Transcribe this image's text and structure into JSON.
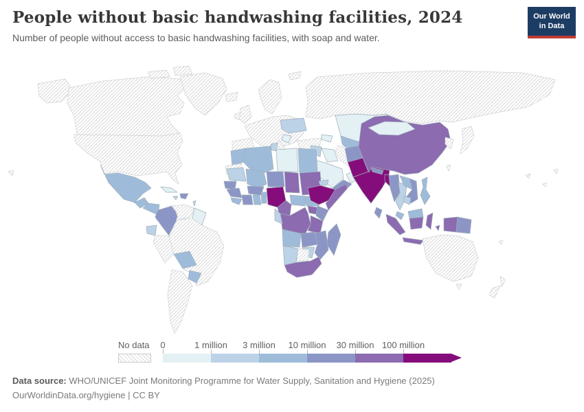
{
  "header": {
    "title": "People without basic handwashing facilities, 2024",
    "subtitle": "Number of people without access to basic handwashing facilities, with soap and water."
  },
  "logo": {
    "line1": "Our World",
    "line2": "in Data",
    "bg_color": "#1d3c63",
    "accent_color": "#c33c33"
  },
  "legend": {
    "no_data": {
      "label": "No data",
      "pattern": "diagonal-hatch"
    },
    "bins": [
      {
        "label": "0",
        "color": "#e4f1f4"
      },
      {
        "label": "1 million",
        "color": "#bcd2e6"
      },
      {
        "label": "3 million",
        "color": "#9ebcda"
      },
      {
        "label": "10 million",
        "color": "#8c96c6"
      },
      {
        "label": "30 million",
        "color": "#8c6bb1"
      },
      {
        "label": "100 million",
        "color": "#850d7b"
      }
    ]
  },
  "footer": {
    "source_label": "Data source:",
    "source_text": " WHO/UNICEF Joint Monitoring Programme for Water Supply, Sanitation and Hygiene (2025)",
    "link": "OurWorldinData.org/hygiene",
    "license": " | CC BY"
  },
  "chart_data": {
    "type": "choropleth_map",
    "title": "People without basic handwashing facilities, 2024",
    "unit": "people without access to basic handwashing facilities",
    "year": 2024,
    "bin_labels": [
      "0",
      "1 million",
      "3 million",
      "10 million",
      "30 million",
      "100 million"
    ],
    "no_data_label": "No data",
    "regions": {
      "alaska": "no-data",
      "canada": "no-data",
      "arctic-islands-1": "no-data",
      "arctic-islands-2": "no-data",
      "greenland": "no-data",
      "usa": "no-data",
      "mexico": 2,
      "guatemala": 2,
      "honduras-nicaragua": 2,
      "costa-rica-panama": 1,
      "cuba": 0,
      "jamaica": 1,
      "hispaniola": 3,
      "lesser-antilles": 1,
      "colombia": 3,
      "venezuela": "no-data",
      "guyanas": 0,
      "ecuador": 1,
      "peru": "no-data",
      "brazil": "no-data",
      "bolivia": 2,
      "paraguay": 2,
      "argentina-chile": "no-data",
      "iceland": "no-data",
      "uk": "no-data",
      "ireland": "no-data",
      "scandinavia": "no-data",
      "europe-mainland": "no-data",
      "spain": "no-data",
      "italy": "no-data",
      "ukraine": 1,
      "balkans": 0,
      "turkey": "no-data",
      "russia": "no-data",
      "svalbard": "no-data",
      "kazakhstan": 0,
      "uzbekistan-turkmenistan": 2,
      "caucasus": 0,
      "syria-levant": 1,
      "iraq": 0,
      "iran": "no-data",
      "saudi-arabia": 0,
      "yemen": 3,
      "oman": 0,
      "morocco": 2,
      "western-sahara": "no-data",
      "algeria": 2,
      "tunisia": 1,
      "libya": 0,
      "egypt": 2,
      "mauritania": 1,
      "mali": 2,
      "niger": 3,
      "chad": 4,
      "sudan": 4,
      "eritrea": 1,
      "senegal": 3,
      "guinea": 3,
      "sierra-leone-liberia": 2,
      "ivory-coast": 3,
      "ghana": 2,
      "burkina-faso": 3,
      "benin-togo": 2,
      "nigeria": 5,
      "cameroon": 4,
      "central-african-republic": 2,
      "south-sudan": 2,
      "ethiopia": 5,
      "somalia": 4,
      "uganda": 4,
      "kenya": 3,
      "drc": 4,
      "congo-gabon": 1,
      "tanzania": 4,
      "angola": 2,
      "zambia": 3,
      "malawi-mozambique": 3,
      "zimbabwe": 1,
      "namibia": 1,
      "botswana": "no-data",
      "south-africa": 4,
      "madagascar": 3,
      "afghanistan": 3,
      "pakistan": 5,
      "india": 5,
      "nepal": 3,
      "bangladesh": 5,
      "sri-lanka": 3,
      "china": 4,
      "mongolia": 0,
      "korea": "no-data",
      "japan": "no-data",
      "taiwan": "no-data",
      "myanmar": 3,
      "thailand": 1,
      "laos": 2,
      "vietnam": 3,
      "cambodia": 1,
      "malaysia": 2,
      "philippines": 2,
      "sumatra": 4,
      "java": 4,
      "borneo-malaysia": 2,
      "borneo-indonesia": 4,
      "sulawesi": 4,
      "lesser-sunda": 4,
      "maluku": 4,
      "west-papua": 4,
      "papua-new-guinea": 3,
      "australia": "no-data",
      "tasmania": "no-data",
      "new-zealand-north": "no-data",
      "new-zealand-south": "no-data",
      "pacific-islands-1": "no-data",
      "pacific-islands-2": "no-data",
      "pacific-islands-3": "no-data",
      "fiji": "no-data",
      "hawaii": "no-data"
    }
  }
}
